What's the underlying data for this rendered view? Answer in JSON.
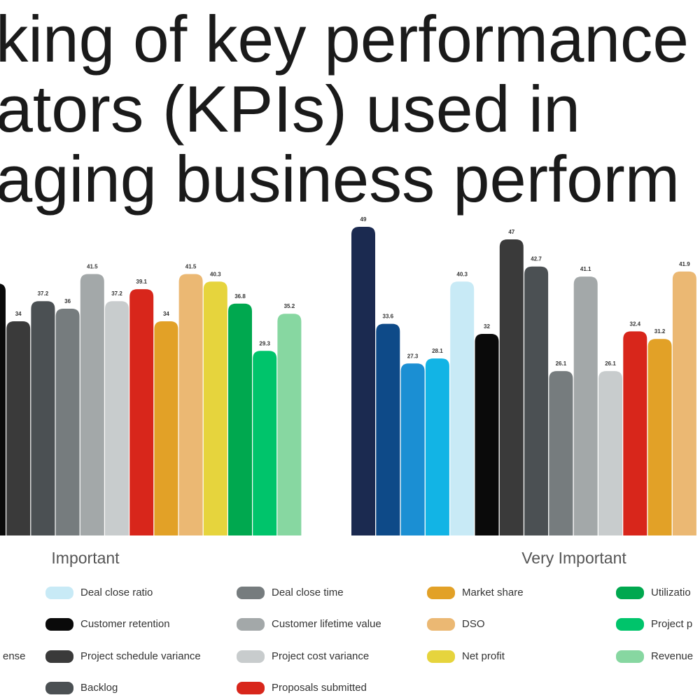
{
  "chart_data": {
    "type": "bar",
    "title": [
      "king of key performance",
      "ators (KPIs) used in",
      "aging business perform"
    ],
    "groups": [
      {
        "name": "Important",
        "values": [
          40,
          34,
          37.2,
          36,
          41.5,
          37.2,
          39.1,
          34,
          41.5,
          40.3,
          36.8,
          29.3,
          35.2
        ],
        "colors": [
          "#0a0a0a",
          "#3a3a3a",
          "#4b5053",
          "#767c7e",
          "#a3a8a9",
          "#c8cccd",
          "#d8261b",
          "#e2a127",
          "#ebb873",
          "#e6d43d",
          "#00a84f",
          "#00c46b",
          "#87d7a1"
        ]
      },
      {
        "name": "Very Important",
        "values": [
          49,
          33.6,
          27.3,
          28.1,
          40.3,
          32,
          47,
          42.7,
          26.1,
          41.1,
          26.1,
          32.4,
          31.2,
          41.9
        ],
        "colors": [
          "#1b2a50",
          "#0e4a88",
          "#1b8fd3",
          "#12b4e5",
          "#c8eaf6",
          "#0a0a0a",
          "#3a3a3a",
          "#4b5053",
          "#767c7e",
          "#a3a8a9",
          "#c8cccd",
          "#d8261b",
          "#e2a127",
          "#ebb873"
        ]
      }
    ],
    "legend_cut_text": "ense",
    "legend": [
      [
        {
          "label": "Deal close ratio",
          "color": "#c8eaf6"
        },
        {
          "label": "Customer retention",
          "color": "#0a0a0a"
        },
        {
          "label": "Project schedule variance",
          "color": "#3a3a3a"
        },
        {
          "label": "Backlog",
          "color": "#4b5053"
        }
      ],
      [
        {
          "label": "Deal close time",
          "color": "#767c7e"
        },
        {
          "label": "Customer lifetime value",
          "color": "#a3a8a9"
        },
        {
          "label": "Project cost variance",
          "color": "#c8cccd"
        },
        {
          "label": "Proposals submitted",
          "color": "#d8261b"
        }
      ],
      [
        {
          "label": "Market share",
          "color": "#e2a127"
        },
        {
          "label": "DSO",
          "color": "#ebb873"
        },
        {
          "label": "Net profit",
          "color": "#e6d43d"
        }
      ],
      [
        {
          "label": "Utilizatio",
          "color": "#00a84f"
        },
        {
          "label": "Project p",
          "color": "#00c46b"
        },
        {
          "label": "Revenue",
          "color": "#87d7a1"
        }
      ]
    ]
  }
}
